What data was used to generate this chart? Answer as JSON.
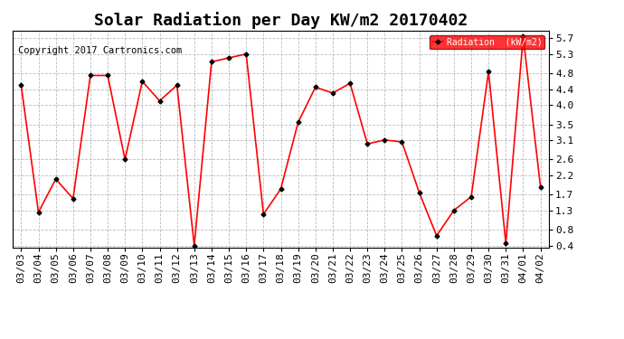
{
  "title": "Solar Radiation per Day KW/m2 20170402",
  "copyright": "Copyright 2017 Cartronics.com",
  "legend_label": "Radiation  (kW/m2)",
  "dates": [
    "03/03",
    "03/04",
    "03/05",
    "03/06",
    "03/07",
    "03/08",
    "03/09",
    "03/10",
    "03/11",
    "03/12",
    "03/13",
    "03/14",
    "03/15",
    "03/16",
    "03/17",
    "03/18",
    "03/19",
    "03/20",
    "03/21",
    "03/22",
    "03/23",
    "03/24",
    "03/25",
    "03/26",
    "03/27",
    "03/28",
    "03/29",
    "03/30",
    "03/31",
    "04/01",
    "04/02"
  ],
  "values": [
    4.5,
    1.25,
    2.1,
    1.6,
    4.75,
    4.75,
    2.6,
    4.6,
    4.1,
    4.5,
    0.4,
    5.1,
    5.2,
    5.3,
    1.2,
    1.85,
    3.55,
    4.45,
    4.3,
    4.55,
    3.0,
    3.1,
    3.05,
    1.75,
    0.65,
    1.3,
    1.65,
    4.85,
    0.45,
    5.75,
    1.9
  ],
  "line_color": "red",
  "marker_color": "black",
  "ylim": [
    0.35,
    5.9
  ],
  "yticks": [
    0.4,
    0.8,
    1.3,
    1.7,
    2.2,
    2.6,
    3.1,
    3.5,
    4.0,
    4.4,
    4.8,
    5.3,
    5.7
  ],
  "grid_color": "#bbbbbb",
  "background_color": "white",
  "title_fontsize": 13,
  "tick_fontsize": 8,
  "copyright_fontsize": 7.5
}
